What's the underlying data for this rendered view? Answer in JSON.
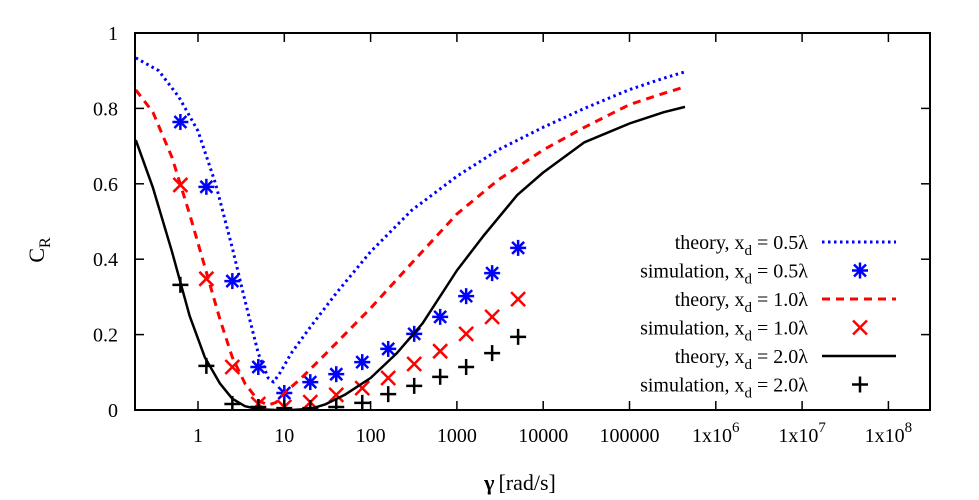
{
  "chart_data": {
    "type": "line",
    "title": "",
    "xlabel": "γ [rad/s]",
    "ylabel": "C_R",
    "xscale": "log",
    "xlim": [
      0.19,
      300000000
    ],
    "ylim": [
      0,
      1
    ],
    "grid": false,
    "legend_position": "inside-right",
    "x_ticks": [
      {
        "value": 1,
        "label": "1"
      },
      {
        "value": 10,
        "label": "10"
      },
      {
        "value": 100,
        "label": "100"
      },
      {
        "value": 1000,
        "label": "1000"
      },
      {
        "value": 10000,
        "label": "10000"
      },
      {
        "value": 100000,
        "label": "100000"
      },
      {
        "value": 1000000,
        "label": "1x10",
        "sup": "6"
      },
      {
        "value": 10000000,
        "label": "1x10",
        "sup": "7"
      },
      {
        "value": 100000000,
        "label": "1x10",
        "sup": "8"
      }
    ],
    "y_ticks": [
      {
        "value": 0,
        "label": "0"
      },
      {
        "value": 0.2,
        "label": "0.2"
      },
      {
        "value": 0.4,
        "label": "0.4"
      },
      {
        "value": 0.6,
        "label": "0.6"
      },
      {
        "value": 0.8,
        "label": "0.8"
      },
      {
        "value": 1,
        "label": "1"
      }
    ],
    "series": [
      {
        "name": "theory, x_d = 0.5λ",
        "kind": "line",
        "style": "dotted",
        "color": "#0000ff",
        "x": [
          0.19,
          0.35,
          0.6,
          1,
          1.6,
          2.5,
          3.5,
          5,
          6.5,
          7.5,
          9,
          12,
          20,
          40,
          100,
          300,
          1000,
          3000,
          10000,
          30000,
          100000,
          250000,
          440000
        ],
        "y": [
          0.934,
          0.9,
          0.83,
          0.74,
          0.6,
          0.43,
          0.29,
          0.15,
          0.085,
          0.074,
          0.1,
          0.15,
          0.22,
          0.31,
          0.42,
          0.53,
          0.62,
          0.69,
          0.75,
          0.8,
          0.85,
          0.88,
          0.897
        ]
      },
      {
        "name": "simulation, x_d = 0.5λ",
        "kind": "scatter",
        "marker": "asterisk",
        "color": "#0000ff",
        "x": [
          0.625,
          1.25,
          2.5,
          5,
          10,
          20,
          40,
          80,
          160,
          320,
          640,
          1280,
          2560,
          5120
        ],
        "y": [
          0.764,
          0.592,
          0.342,
          0.114,
          0.045,
          0.074,
          0.095,
          0.127,
          0.162,
          0.202,
          0.247,
          0.302,
          0.363,
          0.43
        ]
      },
      {
        "name": "theory, x_d = 1.0λ",
        "kind": "line",
        "style": "dashed",
        "color": "#ff0000",
        "x": [
          0.19,
          0.3,
          0.5,
          0.8,
          1.2,
          1.8,
          2.5,
          3.5,
          5,
          6.5,
          8,
          10,
          15,
          25,
          50,
          100,
          300,
          1000,
          3000,
          10000,
          30000,
          100000,
          250000,
          440000
        ],
        "y": [
          0.849,
          0.79,
          0.67,
          0.52,
          0.38,
          0.24,
          0.14,
          0.07,
          0.025,
          0.013,
          0.02,
          0.045,
          0.08,
          0.13,
          0.2,
          0.27,
          0.39,
          0.52,
          0.61,
          0.69,
          0.75,
          0.81,
          0.84,
          0.857
        ]
      },
      {
        "name": "simulation, x_d = 1.0λ",
        "kind": "scatter",
        "marker": "cross-x",
        "color": "#ff0000",
        "x": [
          0.625,
          1.25,
          2.5,
          5,
          10,
          20,
          40,
          80,
          160,
          320,
          640,
          1280,
          2560,
          5120
        ],
        "y": [
          0.597,
          0.348,
          0.114,
          0.016,
          0.008,
          0.021,
          0.04,
          0.058,
          0.085,
          0.122,
          0.156,
          0.202,
          0.247,
          0.294
        ]
      },
      {
        "name": "theory, x_d = 2.0λ",
        "kind": "line",
        "style": "solid",
        "color": "#000000",
        "x": [
          0.19,
          0.3,
          0.5,
          0.8,
          1.2,
          1.8,
          2.5,
          3.5,
          5,
          8,
          12,
          20,
          30,
          50,
          100,
          200,
          400,
          1000,
          2000,
          5000,
          10000,
          30000,
          100000,
          250000,
          440000
        ],
        "y": [
          0.716,
          0.59,
          0.42,
          0.25,
          0.14,
          0.07,
          0.03,
          0.01,
          0.002,
          0.0,
          0.0,
          0.003,
          0.015,
          0.04,
          0.085,
          0.15,
          0.23,
          0.37,
          0.46,
          0.57,
          0.63,
          0.71,
          0.76,
          0.79,
          0.804
        ]
      },
      {
        "name": "simulation, x_d = 2.0λ",
        "kind": "scatter",
        "marker": "plus",
        "color": "#000000",
        "x": [
          0.625,
          1.25,
          2.5,
          5,
          10,
          20,
          40,
          80,
          160,
          320,
          640,
          1280,
          2560,
          5120
        ],
        "y": [
          0.332,
          0.117,
          0.016,
          0.008,
          0.005,
          0.005,
          0.008,
          0.019,
          0.042,
          0.064,
          0.088,
          0.114,
          0.151,
          0.194
        ]
      }
    ]
  },
  "axes": {
    "xlabel_symbol": "γ",
    "xlabel_unit": "[rad/s]",
    "ylabel_main": "C",
    "ylabel_sub": "R"
  },
  "legend": [
    {
      "prefix": "theory, x",
      "sub": "d",
      "suffix": " = 0.5λ",
      "series": 0
    },
    {
      "prefix": "simulation, x",
      "sub": "d",
      "suffix": " = 0.5λ",
      "series": 1
    },
    {
      "prefix": "theory, x",
      "sub": "d",
      "suffix": " = 1.0λ",
      "series": 2
    },
    {
      "prefix": "simulation, x",
      "sub": "d",
      "suffix": " = 1.0λ",
      "series": 3
    },
    {
      "prefix": "theory, x",
      "sub": "d",
      "suffix": " = 2.0λ",
      "series": 4
    },
    {
      "prefix": "simulation, x",
      "sub": "d",
      "suffix": " = 2.0λ",
      "series": 5
    }
  ]
}
